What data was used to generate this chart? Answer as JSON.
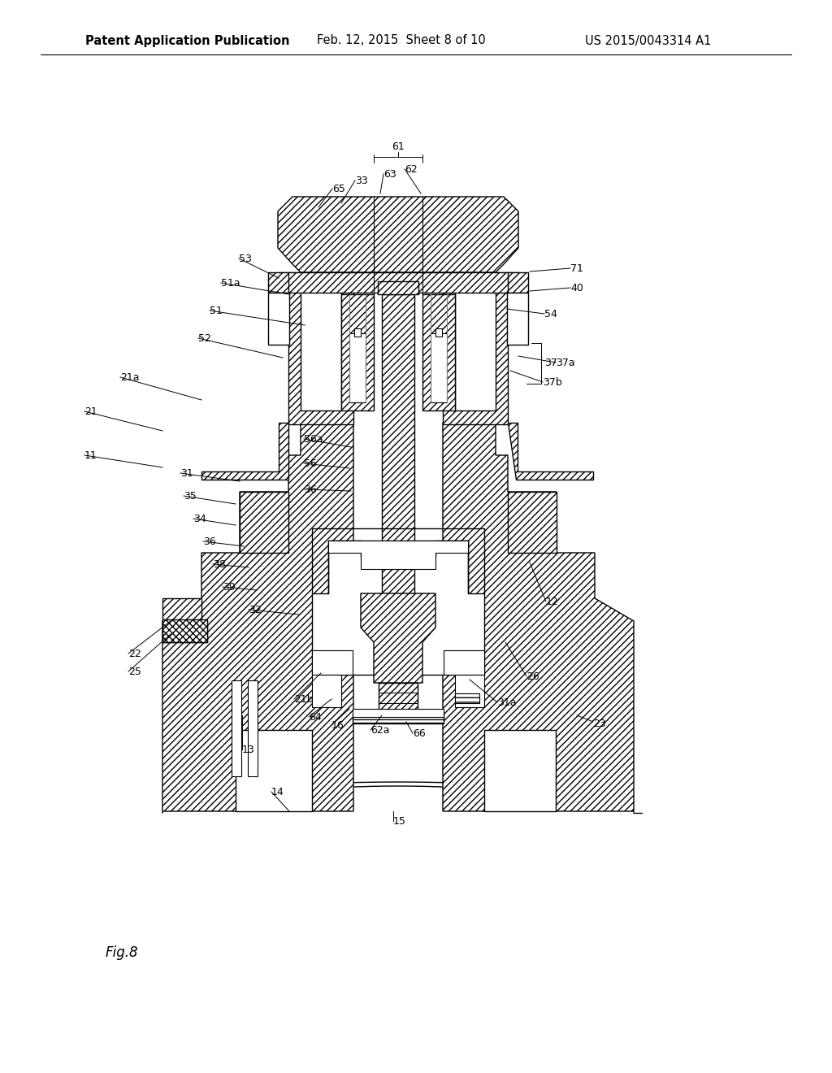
{
  "header_left": "Patent Application Publication",
  "header_mid": "Feb. 12, 2015  Sheet 8 of 10",
  "header_right": "US 2015/0043314 A1",
  "fig_label": "Fig.8",
  "bg_color": "#ffffff",
  "lc": "#000000",
  "lw": 1.0,
  "fs_header": 10.5,
  "fs_label": 9.0,
  "hatch": "////"
}
